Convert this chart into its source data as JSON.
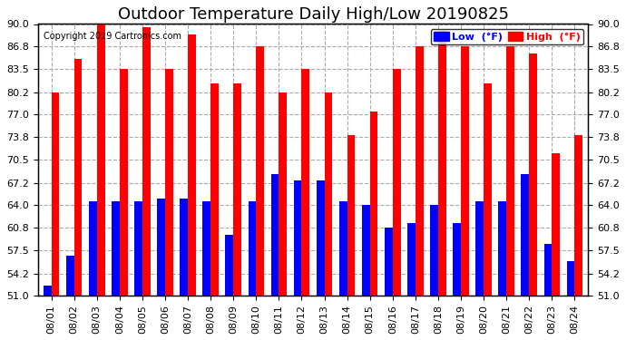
{
  "title": "Outdoor Temperature Daily High/Low 20190825",
  "copyright": "Copyright 2019 Cartronics.com",
  "legend_low": "Low  (°F)",
  "legend_high": "High  (°F)",
  "legend_low_color": "#0000ff",
  "legend_high_color": "#ff0000",
  "dates": [
    "08/01",
    "08/02",
    "08/03",
    "08/04",
    "08/05",
    "08/06",
    "08/07",
    "08/08",
    "08/09",
    "08/10",
    "08/11",
    "08/12",
    "08/13",
    "08/14",
    "08/15",
    "08/16",
    "08/17",
    "08/18",
    "08/19",
    "08/20",
    "08/21",
    "08/22",
    "08/23",
    "08/24"
  ],
  "highs": [
    80.2,
    85.0,
    91.0,
    83.5,
    89.5,
    83.5,
    88.5,
    81.5,
    81.5,
    86.8,
    80.2,
    83.5,
    80.2,
    74.0,
    77.5,
    83.5,
    86.8,
    89.0,
    86.8,
    81.5,
    86.8,
    85.8,
    71.5,
    74.0
  ],
  "lows": [
    52.5,
    56.8,
    64.5,
    64.5,
    64.5,
    65.0,
    65.0,
    64.5,
    59.8,
    64.5,
    68.5,
    67.5,
    67.5,
    64.5,
    64.0,
    60.8,
    61.5,
    64.0,
    61.5,
    64.5,
    64.5,
    68.5,
    58.5,
    56.0
  ],
  "ylim": [
    51.0,
    90.0
  ],
  "yticks": [
    51.0,
    54.2,
    57.5,
    60.8,
    64.0,
    67.2,
    70.5,
    73.8,
    77.0,
    80.2,
    83.5,
    86.8,
    90.0
  ],
  "ytick_labels": [
    "51.0",
    "54.2",
    "57.5",
    "60.8",
    "64.0",
    "67.2",
    "70.5",
    "73.8",
    "77.0",
    "80.2",
    "83.5",
    "86.8",
    "90.0"
  ],
  "bar_width": 0.35,
  "bg_color": "#ffffff",
  "grid_color": "#aaaaaa",
  "title_fontsize": 13,
  "tick_fontsize": 8
}
